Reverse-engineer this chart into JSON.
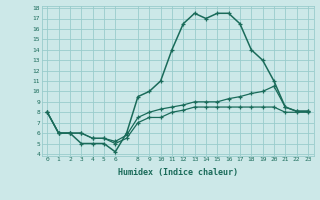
{
  "title": "",
  "xlabel": "Humidex (Indice chaleur)",
  "xlim": [
    0,
    23
  ],
  "ylim": [
    4,
    18
  ],
  "xticks": [
    0,
    1,
    2,
    3,
    4,
    5,
    6,
    8,
    9,
    10,
    11,
    12,
    13,
    14,
    15,
    16,
    17,
    18,
    19,
    20,
    21,
    22,
    23
  ],
  "yticks": [
    4,
    5,
    6,
    7,
    8,
    9,
    10,
    11,
    12,
    13,
    14,
    15,
    16,
    17,
    18
  ],
  "background_color": "#cce8e8",
  "grid_color": "#99cccc",
  "line_color": "#1a6b5a",
  "line1_x": [
    0,
    1,
    2,
    3,
    4,
    5,
    6,
    7,
    8,
    9,
    10,
    11,
    12,
    13,
    14,
    15,
    16,
    17,
    18,
    19,
    20,
    21,
    22,
    23
  ],
  "line1_y": [
    8,
    6,
    6,
    5,
    5,
    5,
    4.2,
    6,
    9.5,
    10,
    11,
    14,
    16.5,
    17.5,
    17,
    17.5,
    17.5,
    16.5,
    14,
    13,
    11,
    8.5,
    8.1,
    8.1
  ],
  "line2_x": [
    0,
    1,
    2,
    3,
    4,
    5,
    6,
    7,
    8,
    9,
    10,
    11,
    12,
    13,
    14,
    15,
    16,
    17,
    18,
    19,
    20,
    21,
    22,
    23
  ],
  "line2_y": [
    8,
    6,
    6,
    6,
    5.5,
    5.5,
    5.2,
    5.8,
    7.5,
    8,
    8.3,
    8.5,
    8.7,
    9,
    9,
    9,
    9.3,
    9.5,
    9.8,
    10,
    10.5,
    8.5,
    8.1,
    8.1
  ],
  "line3_x": [
    0,
    1,
    2,
    3,
    4,
    5,
    6,
    7,
    8,
    9,
    10,
    11,
    12,
    13,
    14,
    15,
    16,
    17,
    18,
    19,
    20,
    21,
    22,
    23
  ],
  "line3_y": [
    8,
    6,
    6,
    6,
    5.5,
    5.5,
    5,
    5.5,
    7,
    7.5,
    7.5,
    8,
    8.2,
    8.5,
    8.5,
    8.5,
    8.5,
    8.5,
    8.5,
    8.5,
    8.5,
    8,
    8,
    8
  ]
}
